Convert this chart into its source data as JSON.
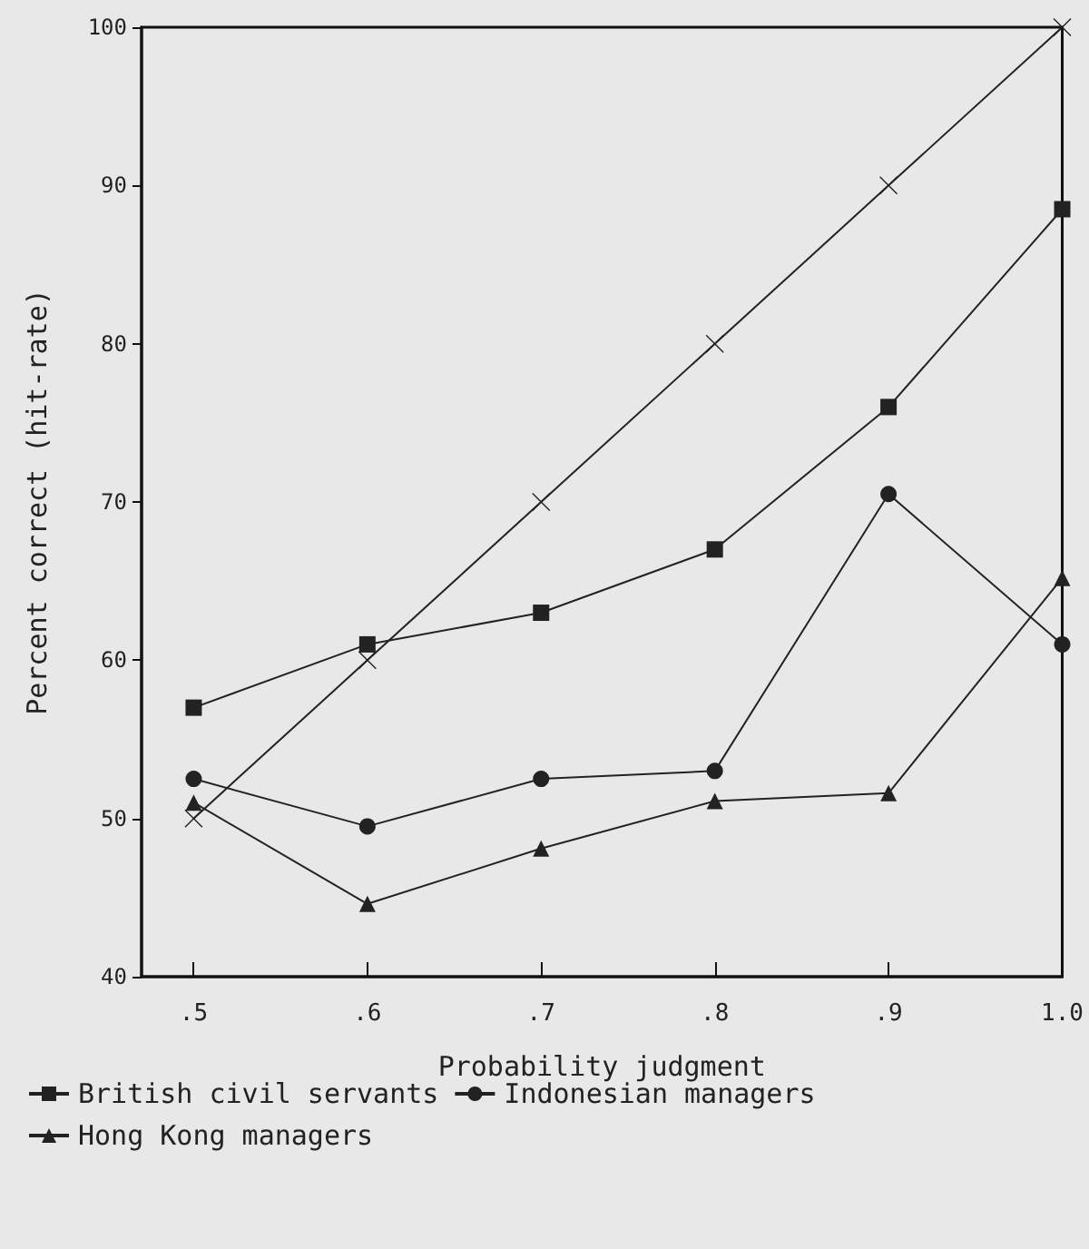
{
  "chart_data": {
    "type": "line",
    "xlabel": "Probability judgment",
    "ylabel": "Percent correct (hit-rate)",
    "x": [
      0.5,
      0.6,
      0.7,
      0.8,
      0.9,
      1.0
    ],
    "xlim": [
      0.47,
      1.0
    ],
    "xticks": [
      {
        "value": 0.5,
        "label": ".5"
      },
      {
        "value": 0.6,
        "label": ".6"
      },
      {
        "value": 0.7,
        "label": ".7"
      },
      {
        "value": 0.8,
        "label": ".8"
      },
      {
        "value": 0.9,
        "label": ".9"
      },
      {
        "value": 1.0,
        "label": "1.0"
      }
    ],
    "ylim": [
      40,
      100
    ],
    "yticks": [
      40,
      50,
      60,
      70,
      80,
      90,
      100
    ],
    "series": [
      {
        "name": "British civil servants",
        "color": "#222222",
        "marker": "square",
        "values": [
          57,
          61,
          63,
          67,
          76,
          88.5
        ]
      },
      {
        "name": "Indonesian managers",
        "color": "#222222",
        "marker": "circle",
        "values": [
          52.5,
          49.5,
          52.5,
          53,
          70.5,
          61
        ]
      },
      {
        "name": "Hong Kong managers",
        "color": "#222222",
        "marker": "triangle",
        "values": [
          51,
          44.6,
          48.1,
          51.1,
          51.6,
          65.2
        ]
      },
      {
        "color": "#222222",
        "marker": "cross",
        "values": [
          50,
          60,
          70,
          80,
          90,
          100
        ]
      }
    ],
    "legend": "bottom left",
    "grid": false,
    "line_style": "solid"
  }
}
